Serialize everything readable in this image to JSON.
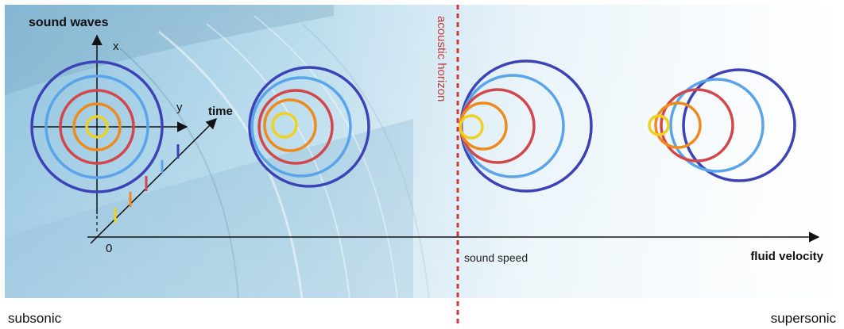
{
  "labels": {
    "title": "sound waves",
    "x_axis": "x",
    "y_axis": "y",
    "time_axis": "time",
    "origin": "0",
    "vertical_line": "acoustic horizon",
    "sound_speed": "sound speed",
    "fluid_velocity": "fluid velocity",
    "subsonic": "subsonic",
    "supersonic": "supersonic"
  },
  "colors": {
    "ring_1": "#f0d021",
    "ring_2": "#ef8a1e",
    "ring_3": "#d2474a",
    "ring_4": "#5aa4ea",
    "ring_5": "#3d43b7",
    "horizon": "#d43a3a",
    "water": "#8fc3df",
    "axis": "#111111"
  }
}
